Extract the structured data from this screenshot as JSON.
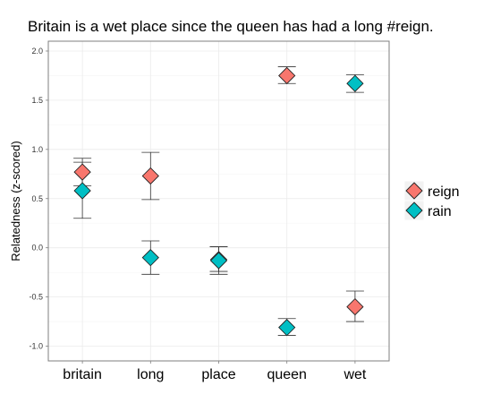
{
  "chart_data": {
    "type": "scatter",
    "title": "Britain is a wet place since the queen has had a long #reign.",
    "xlabel": "",
    "ylabel": "Relatedness (z-scored)",
    "categories": [
      "britain",
      "long",
      "place",
      "queen",
      "wet"
    ],
    "ylim": [
      -1.15,
      2.1
    ],
    "yticks": [
      {
        "value": 2.0,
        "label": "2.0"
      },
      {
        "value": 1.5,
        "label": "1.5"
      },
      {
        "value": 1.0,
        "label": "1.0"
      },
      {
        "value": 0.5,
        "label": "0.5"
      },
      {
        "value": 0.0,
        "label": "0.0"
      },
      {
        "value": -0.5,
        "label": "-0.5"
      },
      {
        "value": -1.0,
        "label": "-1.0"
      }
    ],
    "grid": true,
    "legend_position": "right",
    "series": [
      {
        "name": "reign",
        "color": "#F8766D",
        "points": [
          {
            "category": "britain",
            "y": 0.77,
            "low": 0.63,
            "high": 0.91
          },
          {
            "category": "long",
            "y": 0.73,
            "low": 0.49,
            "high": 0.97
          },
          {
            "category": "place",
            "y": -0.12,
            "low": -0.24,
            "high": 0.01
          },
          {
            "category": "queen",
            "y": 1.75,
            "low": 1.67,
            "high": 1.84
          },
          {
            "category": "wet",
            "y": -0.6,
            "low": -0.75,
            "high": -0.44
          }
        ]
      },
      {
        "name": "rain",
        "color": "#00BFC4",
        "points": [
          {
            "category": "britain",
            "y": 0.58,
            "low": 0.3,
            "high": 0.87
          },
          {
            "category": "long",
            "y": -0.1,
            "low": -0.27,
            "high": 0.07
          },
          {
            "category": "place",
            "y": -0.13,
            "low": -0.27,
            "high": 0.01
          },
          {
            "category": "queen",
            "y": -0.81,
            "low": -0.89,
            "high": -0.72
          },
          {
            "category": "wet",
            "y": 1.67,
            "low": 1.58,
            "high": 1.76
          }
        ]
      }
    ]
  }
}
